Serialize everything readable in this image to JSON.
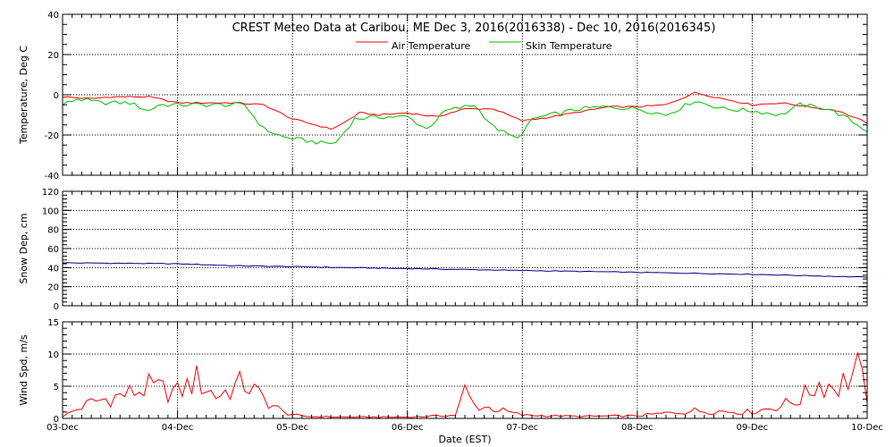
{
  "chart_data": [
    {
      "type": "line",
      "title": "CREST Meteo Data at Caribou, ME   Dec  3, 2016(2016338) - Dec 10, 2016(2016345)",
      "ylabel": "Temperature, Deg C",
      "ylim": [
        -40,
        40
      ],
      "yticks": [
        "40",
        "20",
        "0",
        "-20",
        "-40"
      ],
      "xlim": [
        "2016-12-03",
        "2016-12-10"
      ],
      "grid": true,
      "legend": "top-center",
      "series": [
        {
          "name": "Air Temperature",
          "color": "#ff0000",
          "points": [
            [
              "2016-12-03 00:00",
              -1
            ],
            [
              "2016-12-03 06:00",
              -2
            ],
            [
              "2016-12-03 10:00",
              -1
            ],
            [
              "2016-12-03 18:00",
              -1
            ],
            [
              "2016-12-04 00:00",
              -4
            ],
            [
              "2016-12-04 12:00",
              -4
            ],
            [
              "2016-12-04 18:00",
              -5
            ],
            [
              "2016-12-05 00:00",
              -12
            ],
            [
              "2016-12-05 08:00",
              -17
            ],
            [
              "2016-12-05 10:00",
              -15
            ],
            [
              "2016-12-05 14:00",
              -9
            ],
            [
              "2016-12-05 18:00",
              -10
            ],
            [
              "2016-12-06 00:00",
              -9
            ],
            [
              "2016-12-06 06:00",
              -11
            ],
            [
              "2016-12-06 12:00",
              -7
            ],
            [
              "2016-12-06 18:00",
              -7
            ],
            [
              "2016-12-07 00:00",
              -13
            ],
            [
              "2016-12-07 06:00",
              -11
            ],
            [
              "2016-12-07 18:00",
              -6
            ],
            [
              "2016-12-08 00:00",
              -6
            ],
            [
              "2016-12-08 06:00",
              -5
            ],
            [
              "2016-12-08 12:00",
              1
            ],
            [
              "2016-12-08 18:00",
              -2
            ],
            [
              "2016-12-09 00:00",
              -5
            ],
            [
              "2016-12-09 06:00",
              -4
            ],
            [
              "2016-12-09 12:00",
              -6
            ],
            [
              "2016-12-09 18:00",
              -8
            ],
            [
              "2016-12-10 00:00",
              -14
            ]
          ]
        },
        {
          "name": "Skin Temperature",
          "color": "#00c000",
          "points": [
            [
              "2016-12-03 00:00",
              -5
            ],
            [
              "2016-12-03 03:00",
              -2
            ],
            [
              "2016-12-03 08:00",
              -4
            ],
            [
              "2016-12-03 14:00",
              -4
            ],
            [
              "2016-12-03 18:00",
              -8
            ],
            [
              "2016-12-03 20:00",
              -5
            ],
            [
              "2016-12-04 06:00",
              -5
            ],
            [
              "2016-12-04 14:00",
              -5
            ],
            [
              "2016-12-04 18:00",
              -17
            ],
            [
              "2016-12-04 22:00",
              -21
            ],
            [
              "2016-12-05 06:00",
              -24
            ],
            [
              "2016-12-05 09:00",
              -24
            ],
            [
              "2016-12-05 13:00",
              -12
            ],
            [
              "2016-12-05 18:00",
              -11
            ],
            [
              "2016-12-06 00:00",
              -11
            ],
            [
              "2016-12-06 04:00",
              -17
            ],
            [
              "2016-12-06 08:00",
              -8
            ],
            [
              "2016-12-06 14:00",
              -5
            ],
            [
              "2016-12-06 18:00",
              -16
            ],
            [
              "2016-12-06 22:00",
              -21
            ],
            [
              "2016-12-07 00:00",
              -20
            ],
            [
              "2016-12-07 02:00",
              -12
            ],
            [
              "2016-12-07 12:00",
              -7
            ],
            [
              "2016-12-07 18:00",
              -6
            ],
            [
              "2016-12-08 00:00",
              -7
            ],
            [
              "2016-12-08 06:00",
              -10
            ],
            [
              "2016-12-08 12:00",
              -3
            ],
            [
              "2016-12-08 18:00",
              -7
            ],
            [
              "2016-12-09 00:00",
              -8
            ],
            [
              "2016-12-09 06:00",
              -10
            ],
            [
              "2016-12-09 10:00",
              -5
            ],
            [
              "2016-12-09 16:00",
              -7
            ],
            [
              "2016-12-09 20:00",
              -12
            ],
            [
              "2016-12-10 00:00",
              -18
            ]
          ]
        }
      ]
    },
    {
      "type": "line",
      "ylabel": "Snow Dep, cm",
      "ylim": [
        0,
        120
      ],
      "yticks": [
        "120",
        "100",
        "80",
        "60",
        "40",
        "20",
        "0"
      ],
      "xlim": [
        "2016-12-03",
        "2016-12-10"
      ],
      "grid": true,
      "series": [
        {
          "color": "#000080",
          "points": [
            [
              "2016-12-03 00:00",
              45
            ],
            [
              "2016-12-04 00:00",
              44
            ],
            [
              "2016-12-04 12:00",
              42
            ],
            [
              "2016-12-05 00:00",
              41
            ],
            [
              "2016-12-06 00:00",
              39
            ],
            [
              "2016-12-07 00:00",
              37
            ],
            [
              "2016-12-08 00:00",
              35
            ],
            [
              "2016-12-09 00:00",
              33
            ],
            [
              "2016-12-10 00:00",
              30
            ]
          ]
        }
      ]
    },
    {
      "type": "line",
      "ylabel": "Wind Spd, m/s",
      "xlabel": "Date (EST)",
      "ylim": [
        0,
        15
      ],
      "yticks": [
        "15",
        "10",
        "5",
        "0"
      ],
      "xlim": [
        "2016-12-03",
        "2016-12-10"
      ],
      "xticks": [
        "03-Dec",
        "04-Dec",
        "05-Dec",
        "06-Dec",
        "07-Dec",
        "08-Dec",
        "09-Dec",
        "10-Dec"
      ],
      "grid": true,
      "series": [
        {
          "color": "#ff0000",
          "points": [
            [
              "2016-12-03 00:00",
              0.3
            ],
            [
              "2016-12-03 06:00",
              2.5
            ],
            [
              "2016-12-03 12:00",
              3.5
            ],
            [
              "2016-12-03 18:00",
              4.8
            ],
            [
              "2016-12-04 00:00",
              4
            ],
            [
              "2016-12-04 04:00",
              6
            ],
            [
              "2016-12-04 08:00",
              3.5
            ],
            [
              "2016-12-04 14:00",
              5.5
            ],
            [
              "2016-12-04 18:00",
              3
            ],
            [
              "2016-12-04 22:00",
              1
            ],
            [
              "2016-12-05 02:00",
              0.3
            ],
            [
              "2016-12-05 12:00",
              0.2
            ],
            [
              "2016-12-06 00:00",
              0.2
            ],
            [
              "2016-12-06 10:00",
              0.5
            ],
            [
              "2016-12-06 12:00",
              4.2
            ],
            [
              "2016-12-06 14:00",
              2
            ],
            [
              "2016-12-06 18:00",
              1.5
            ],
            [
              "2016-12-07 00:00",
              0.5
            ],
            [
              "2016-12-07 12:00",
              0.3
            ],
            [
              "2016-12-08 00:00",
              0.4
            ],
            [
              "2016-12-08 12:00",
              1.2
            ],
            [
              "2016-12-09 00:00",
              1
            ],
            [
              "2016-12-09 06:00",
              2
            ],
            [
              "2016-12-09 10:00",
              3
            ],
            [
              "2016-12-09 14:00",
              5.5
            ],
            [
              "2016-12-09 18:00",
              5
            ],
            [
              "2016-12-09 22:00",
              7.5
            ],
            [
              "2016-12-10 00:00",
              3.5
            ]
          ]
        }
      ]
    }
  ]
}
